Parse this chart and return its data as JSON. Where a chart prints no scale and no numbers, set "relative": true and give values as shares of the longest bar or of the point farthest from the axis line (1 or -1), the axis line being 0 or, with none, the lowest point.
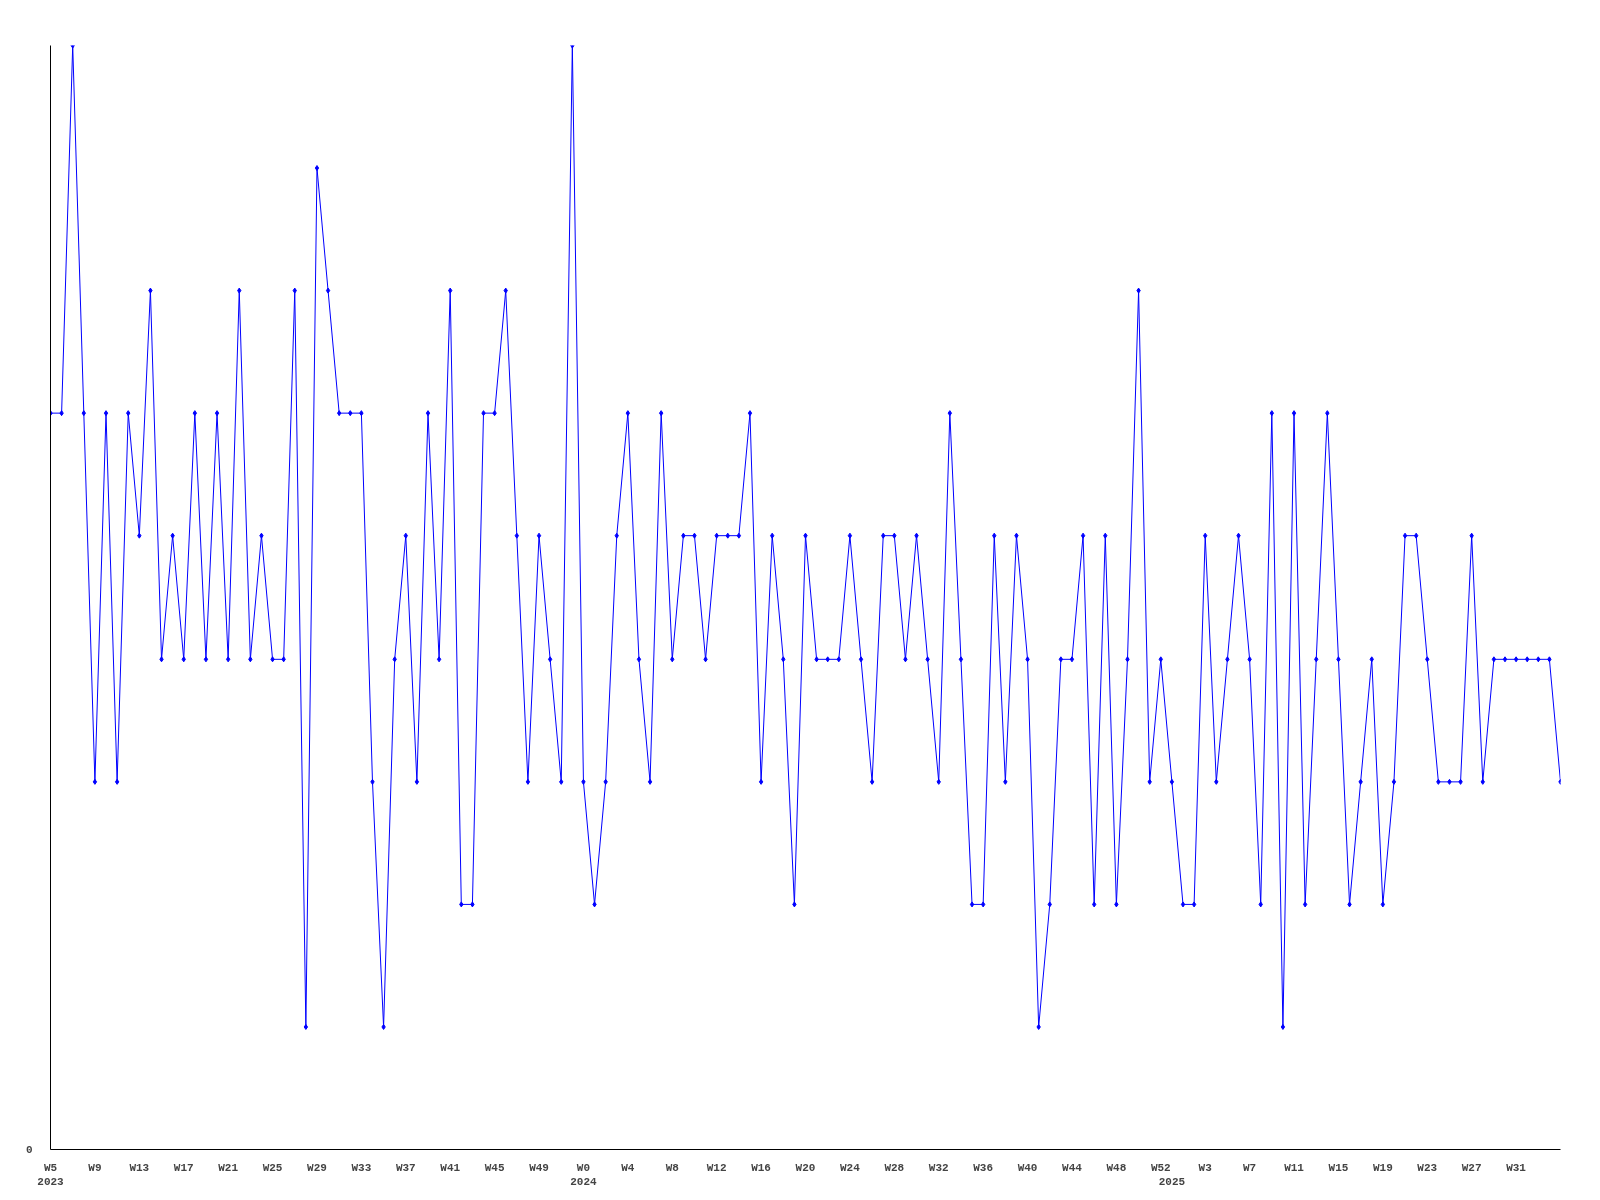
{
  "chart_data": {
    "type": "line",
    "relative": true,
    "marker": "diamond",
    "line_style": "solid",
    "grid": false,
    "annotations": [
      "0"
    ],
    "categories": [
      "W5\n2023",
      null,
      null,
      null,
      "W9",
      null,
      null,
      null,
      "W13",
      null,
      null,
      null,
      "W17",
      null,
      null,
      null,
      "W21",
      null,
      null,
      null,
      "W25",
      null,
      null,
      null,
      "W29",
      null,
      null,
      null,
      "W33",
      null,
      null,
      null,
      "W37",
      null,
      null,
      null,
      "W41",
      null,
      null,
      null,
      "W45",
      null,
      null,
      null,
      "W49",
      null,
      null,
      null,
      "W0\n2024",
      null,
      null,
      null,
      "W4",
      null,
      null,
      null,
      "W8",
      null,
      null,
      null,
      "W12",
      null,
      null,
      null,
      "W16",
      null,
      null,
      null,
      "W20",
      null,
      null,
      null,
      "W24",
      null,
      null,
      null,
      "W28",
      null,
      null,
      null,
      "W32",
      null,
      null,
      null,
      "W36",
      null,
      null,
      null,
      "W40",
      null,
      null,
      null,
      "W44",
      null,
      null,
      null,
      "W48",
      null,
      null,
      null,
      "W52",
      "\n2025",
      null,
      null,
      "W3",
      null,
      null,
      null,
      "W7",
      null,
      null,
      null,
      "W11",
      null,
      null,
      null,
      "W15",
      null,
      null,
      null,
      "W19",
      null,
      null,
      null,
      "W23",
      null,
      null,
      null,
      "W27",
      null,
      null,
      null,
      "W31",
      null,
      null,
      null,
      null
    ],
    "series": [
      {
        "color": "#0000ff",
        "values": [
          0.667,
          0.667,
          1,
          0.667,
          0.333,
          0.667,
          0.333,
          0.667,
          0.556,
          0.778,
          0.444,
          0.556,
          0.444,
          0.667,
          0.444,
          0.667,
          0.444,
          0.778,
          0.444,
          0.556,
          0.444,
          0.444,
          0.778,
          0.111,
          0.889,
          0.778,
          0.667,
          0.667,
          0.667,
          0.333,
          0.111,
          0.444,
          0.556,
          0.333,
          0.667,
          0.444,
          0.778,
          0.222,
          0.222,
          0.667,
          0.667,
          0.778,
          0.556,
          0.333,
          0.556,
          0.444,
          0.333,
          1,
          0.333,
          0.222,
          0.333,
          0.556,
          0.667,
          0.444,
          0.333,
          0.667,
          0.444,
          0.556,
          0.556,
          0.444,
          0.556,
          0.556,
          0.556,
          0.667,
          0.333,
          0.556,
          0.444,
          0.222,
          0.556,
          0.444,
          0.444,
          0.444,
          0.556,
          0.444,
          0.333,
          0.556,
          0.556,
          0.444,
          0.556,
          0.444,
          0.333,
          0.667,
          0.444,
          0.222,
          0.222,
          0.556,
          0.333,
          0.556,
          0.444,
          0.111,
          0.222,
          0.444,
          0.444,
          0.556,
          0.222,
          0.556,
          0.222,
          0.444,
          0.778,
          0.333,
          0.444,
          0.333,
          0.222,
          0.222,
          0.556,
          0.333,
          0.444,
          0.556,
          0.444,
          0.222,
          0.667,
          0.111,
          0.667,
          0.222,
          0.444,
          0.667,
          0.444,
          0.222,
          0.333,
          0.444,
          0.222,
          0.333,
          0.556,
          0.556,
          0.444,
          0.333,
          0.333,
          0.333,
          0.556,
          0.333,
          0.444,
          0.444,
          0.444,
          0.444,
          0.444,
          0.444,
          0.333
        ]
      }
    ]
  }
}
